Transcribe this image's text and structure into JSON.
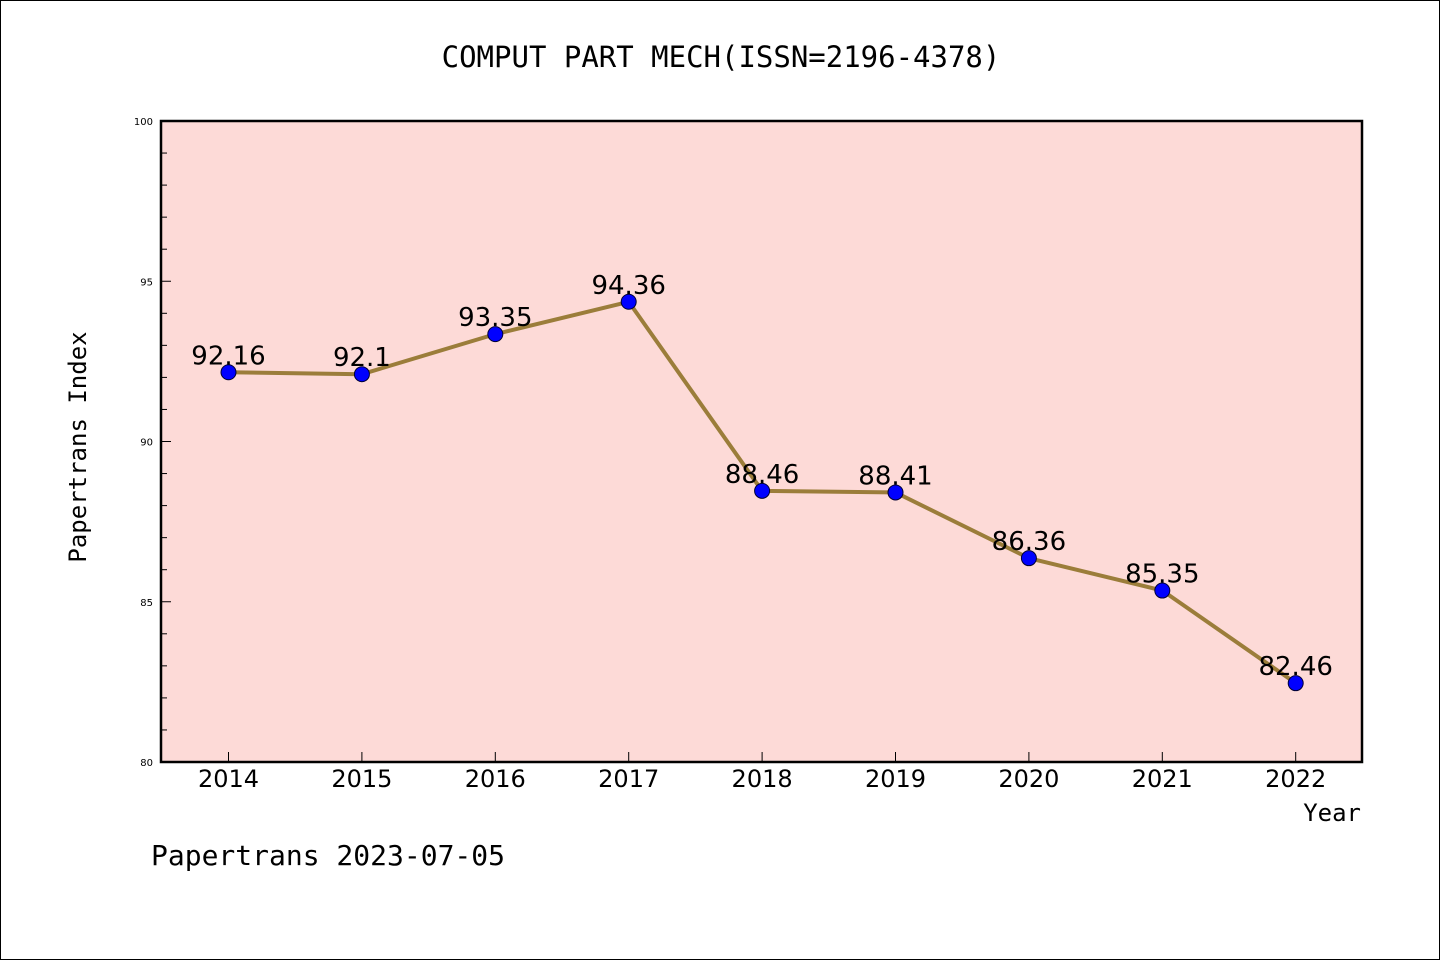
{
  "footer": "Papertrans 2023-07-05",
  "colors": {
    "plot_background": "#fddad7",
    "line": "#9b7d3a",
    "marker": "#0000ff",
    "axes": "#000000"
  },
  "chart_data": {
    "type": "line",
    "title": "COMPUT PART MECH(ISSN=2196-4378)",
    "xlabel": "Year",
    "ylabel": "Papertrans Index",
    "categories": [
      "2014",
      "2015",
      "2016",
      "2017",
      "2018",
      "2019",
      "2020",
      "2021",
      "2022"
    ],
    "series": [
      {
        "values": [
          92.16,
          92.1,
          93.35,
          94.36,
          88.46,
          88.41,
          86.36,
          85.35,
          82.46
        ],
        "labels": [
          "92.16",
          "92.1",
          "93.35",
          "94.36",
          "88.46",
          "88.41",
          "86.36",
          "85.35",
          "82.46"
        ]
      }
    ],
    "ylim": [
      80,
      100
    ],
    "yticks": [
      "80",
      "85",
      "90",
      "95",
      "100"
    ],
    "grid": false,
    "legend": "none"
  }
}
